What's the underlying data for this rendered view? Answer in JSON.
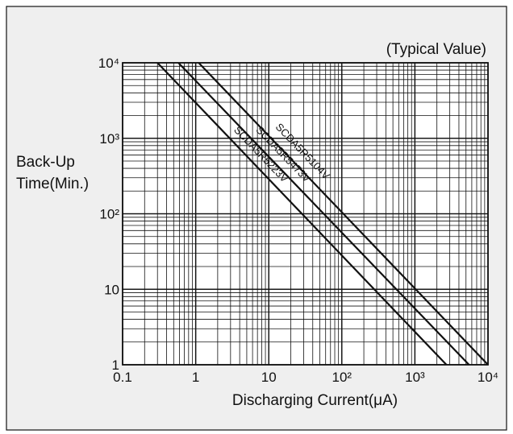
{
  "chart_data": {
    "type": "line",
    "title": "(Typical Value)",
    "xlabel": "Discharging Current(μA)",
    "ylabel_lines": [
      "Back-Up",
      "Time(Min.)"
    ],
    "xscale": "log",
    "yscale": "log",
    "xlim": [
      0.1,
      10000
    ],
    "ylim": [
      1,
      10000
    ],
    "grid": true,
    "x_ticks": [
      {
        "label": "0.1",
        "value": 0.1
      },
      {
        "label": "1",
        "value": 1
      },
      {
        "label": "10",
        "value": 10
      },
      {
        "label": "10²",
        "value": 100
      },
      {
        "label": "10³",
        "value": 1000
      },
      {
        "label": "10⁴",
        "value": 10000
      }
    ],
    "y_ticks": [
      {
        "label": "1",
        "value": 1
      },
      {
        "label": "10",
        "value": 10
      },
      {
        "label": "10²",
        "value": 100
      },
      {
        "label": "10³",
        "value": 1000
      },
      {
        "label": "10⁴",
        "value": 10000
      }
    ],
    "series": [
      {
        "name": "SCDA5R5104V",
        "x": [
          1.1,
          10000
        ],
        "y": [
          10000,
          1
        ]
      },
      {
        "name": "SCDA5R5473V",
        "x": [
          0.58,
          5500
        ],
        "y": [
          10000,
          1
        ]
      },
      {
        "name": "SCDA5R5223V",
        "x": [
          0.3,
          2700
        ],
        "y": [
          10000,
          1
        ]
      }
    ]
  }
}
